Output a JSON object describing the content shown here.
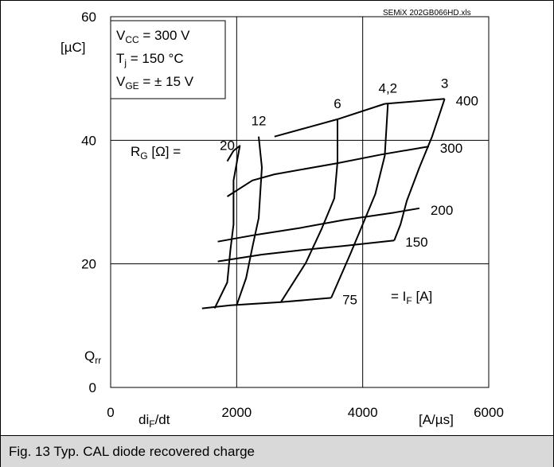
{
  "chart_data": {
    "type": "line",
    "source_label": "SEMiX 202GB066HD.xls",
    "x_tick_labels": [
      "0",
      "2000",
      "4000",
      "6000"
    ],
    "y_tick_labels": [
      "0",
      "20",
      "40",
      "60"
    ],
    "xlim": [
      0,
      6000
    ],
    "ylim": [
      0,
      60
    ],
    "grid": true,
    "x_name": "di",
    "x_name_sub": "F",
    "x_name_suffix": "/dt",
    "x_unit": "[A/µs]",
    "y_name": "Q",
    "y_name_sub": "rr",
    "y_unit": "[µC]",
    "conditions": [
      {
        "main": "V",
        "sub": "CC",
        "rest": " = 300 V"
      },
      {
        "main": "T",
        "sub": "j",
        "rest": "  = 150 °C"
      },
      {
        "main": "V",
        "sub": "GE",
        "rest": " = ± 15 V"
      }
    ],
    "if_family_label": {
      "prefix": "= I",
      "sub": "F",
      "suffix": " [A]"
    },
    "rg_family_label": {
      "prefix": "R",
      "sub": "G",
      "suffix": " [Ω] ="
    },
    "if_series": [
      {
        "name": "400",
        "points": [
          [
            4350,
            45.9
          ],
          [
            5300,
            46.7
          ]
        ]
      },
      {
        "name": "",
        "points": [
          [
            2600,
            40.6
          ],
          [
            3600,
            43.4
          ],
          [
            4350,
            45.9
          ]
        ]
      },
      {
        "name": "300",
        "points": [
          [
            1850,
            30.9
          ],
          [
            2250,
            33.5
          ],
          [
            2600,
            34.5
          ],
          [
            3600,
            36.3
          ],
          [
            4300,
            37.7
          ],
          [
            5050,
            39.0
          ]
        ]
      },
      {
        "name": "200",
        "points": [
          [
            1700,
            23.6
          ],
          [
            2300,
            24.7
          ],
          [
            3000,
            25.8
          ],
          [
            3700,
            27.1
          ],
          [
            4500,
            28.3
          ],
          [
            4900,
            29.0
          ]
        ]
      },
      {
        "name": "150",
        "points": [
          [
            1700,
            20.4
          ],
          [
            2400,
            21.5
          ],
          [
            3000,
            22.2
          ],
          [
            3700,
            22.9
          ],
          [
            4500,
            23.8
          ]
        ]
      },
      {
        "name": "75",
        "points": [
          [
            1450,
            12.8
          ],
          [
            1900,
            13.3
          ],
          [
            2700,
            13.8
          ],
          [
            3500,
            14.5
          ]
        ]
      }
    ],
    "rg_series": [
      {
        "name": "20",
        "points": [
          [
            1850,
            36.6
          ],
          [
            1950,
            38.3
          ],
          [
            2050,
            39.1
          ],
          [
            1950,
            33.5
          ],
          [
            1950,
            26.4
          ],
          [
            1900,
            22.2
          ],
          [
            1850,
            17.0
          ],
          [
            1650,
            12.8
          ]
        ]
      },
      {
        "name": "12",
        "points": [
          [
            2350,
            40.6
          ],
          [
            2400,
            35.6
          ],
          [
            2350,
            27.4
          ],
          [
            2250,
            22.7
          ],
          [
            2150,
            17.7
          ],
          [
            2000,
            13.3
          ]
        ]
      },
      {
        "name": "6",
        "points": [
          [
            3600,
            43.4
          ],
          [
            3600,
            36.5
          ],
          [
            3550,
            30.6
          ],
          [
            3350,
            25.7
          ],
          [
            3100,
            20.2
          ],
          [
            2700,
            13.8
          ]
        ]
      },
      {
        "name": "4,2",
        "points": [
          [
            4400,
            45.9
          ],
          [
            4350,
            37.5
          ],
          [
            4200,
            31.3
          ],
          [
            4000,
            26.4
          ],
          [
            3800,
            21.5
          ],
          [
            3500,
            14.5
          ]
        ]
      },
      {
        "name": "3",
        "points": [
          [
            5300,
            46.7
          ],
          [
            5100,
            40.6
          ],
          [
            4900,
            35.6
          ],
          [
            4700,
            30.2
          ],
          [
            4600,
            26.4
          ],
          [
            4500,
            23.8
          ]
        ]
      }
    ]
  },
  "caption": "Fig. 13 Typ. CAL diode recovered charge"
}
